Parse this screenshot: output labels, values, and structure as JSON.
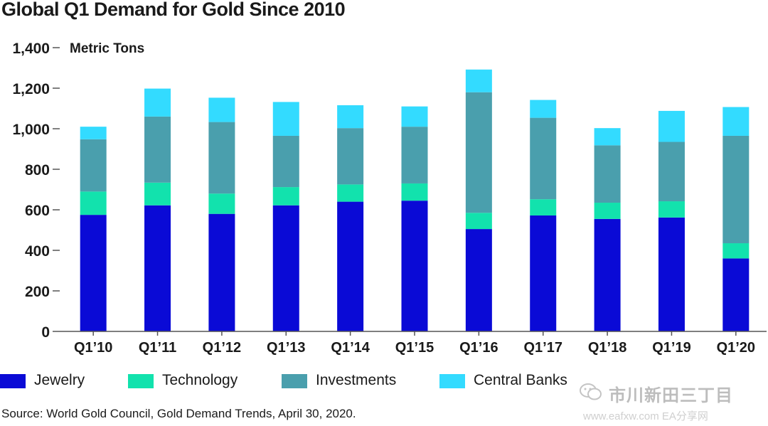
{
  "title": "Global Q1 Demand for Gold Since 2010",
  "chart_data": {
    "type": "bar",
    "stacked": true,
    "unit_label": "Metric Tons",
    "categories": [
      "Q1’10",
      "Q1’11",
      "Q1’12",
      "Q1’13",
      "Q1’14",
      "Q1’15",
      "Q1’16",
      "Q1’17",
      "Q1’18",
      "Q1’19",
      "Q1’20"
    ],
    "ylim": [
      0,
      1400
    ],
    "yticks": [
      0,
      200,
      400,
      600,
      800,
      1000,
      1200,
      1400
    ],
    "ytick_labels": [
      "0",
      "200",
      "400",
      "600",
      "800",
      "1,000",
      "1,200",
      "1,400"
    ],
    "series": [
      {
        "name": "Jewelry",
        "color": "#0a0ad6",
        "values": [
          575,
          622,
          580,
          622,
          640,
          645,
          505,
          572,
          555,
          562,
          360
        ]
      },
      {
        "name": "Technology",
        "color": "#12e2ad",
        "values": [
          115,
          112,
          100,
          90,
          85,
          85,
          80,
          80,
          80,
          80,
          75
        ]
      },
      {
        "name": "Investments",
        "color": "#4a9fad",
        "values": [
          258,
          326,
          353,
          253,
          278,
          280,
          595,
          402,
          283,
          293,
          530
        ]
      },
      {
        "name": "Central Banks",
        "color": "#33dbff",
        "values": [
          62,
          138,
          120,
          167,
          113,
          100,
          112,
          88,
          85,
          153,
          142
        ]
      }
    ],
    "legend_position": "bottom",
    "grid": false
  },
  "source": "Source: World Gold Council, Gold Demand Trends, April 30, 2020.",
  "watermark": {
    "name": "市川新田三丁目",
    "url": "www.eafxw.com  EA分享网"
  }
}
